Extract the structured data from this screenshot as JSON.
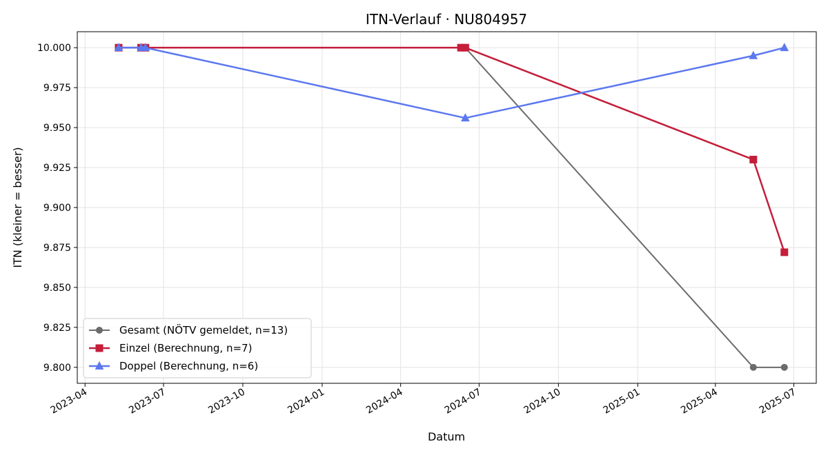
{
  "chart_data": {
    "type": "line",
    "title": "ITN-Verlauf · NU804957",
    "xlabel": "Datum",
    "ylabel": "ITN  (kleiner = besser)",
    "x_ticks": [
      "2023-04",
      "2023-07",
      "2023-10",
      "2024-01",
      "2024-04",
      "2024-07",
      "2024-10",
      "2025-01",
      "2025-04",
      "2025-07"
    ],
    "y_ticks": [
      "10.000",
      "9.975",
      "9.950",
      "9.925",
      "9.900",
      "9.875",
      "9.850",
      "9.825",
      "9.800"
    ],
    "xlim": [
      "2023-03-23",
      "2025-07-27"
    ],
    "ylim": [
      9.79,
      10.01
    ],
    "grid": true,
    "legend_position": "lower-left",
    "series": [
      {
        "name": "Gesamt (NÖTV gemeldet, n=13)",
        "color": "#6b6b6b",
        "marker": "circle",
        "points": [
          {
            "x": "2023-05-10",
            "y": 10.0
          },
          {
            "x": "2023-06-10",
            "y": 10.0
          },
          {
            "x": "2024-06-10",
            "y": 10.0
          },
          {
            "x": "2024-06-15",
            "y": 10.0
          },
          {
            "x": "2025-05-15",
            "y": 9.8
          },
          {
            "x": "2025-06-20",
            "y": 9.8
          }
        ]
      },
      {
        "name": "Einzel (Berechnung, n=7)",
        "color": "#c41e3a",
        "marker": "square",
        "points": [
          {
            "x": "2023-05-10",
            "y": 10.0
          },
          {
            "x": "2023-06-05",
            "y": 10.0
          },
          {
            "x": "2023-06-10",
            "y": 10.0
          },
          {
            "x": "2024-06-10",
            "y": 10.0
          },
          {
            "x": "2024-06-15",
            "y": 10.0
          },
          {
            "x": "2025-05-15",
            "y": 9.93
          },
          {
            "x": "2025-06-20",
            "y": 9.872
          }
        ]
      },
      {
        "name": "Doppel (Berechnung, n=6)",
        "color": "#5b78f0",
        "marker": "triangle",
        "points": [
          {
            "x": "2023-05-10",
            "y": 10.0
          },
          {
            "x": "2023-06-05",
            "y": 10.0
          },
          {
            "x": "2023-06-10",
            "y": 10.0
          },
          {
            "x": "2024-06-15",
            "y": 9.956
          },
          {
            "x": "2025-05-15",
            "y": 9.995
          },
          {
            "x": "2025-06-20",
            "y": 10.0
          }
        ]
      }
    ]
  }
}
